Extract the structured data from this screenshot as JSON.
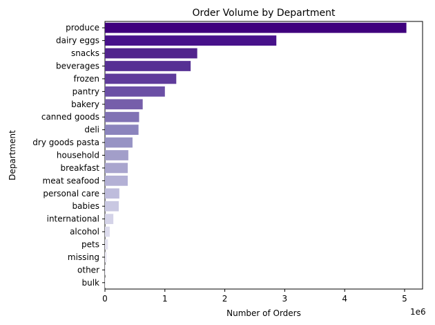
{
  "chart_data": {
    "type": "bar",
    "orientation": "horizontal",
    "title": "Order Volume by Department",
    "xlabel": "Number of Orders",
    "ylabel": "Department",
    "x_scale_label": "1e6",
    "xlim": [
      0,
      5300000
    ],
    "x_ticks": [
      0,
      1000000,
      2000000,
      3000000,
      4000000,
      5000000
    ],
    "x_tick_labels": [
      "0",
      "1",
      "2",
      "3",
      "4",
      "5"
    ],
    "grid": false,
    "legend": "none",
    "categories": [
      "produce",
      "dairy eggs",
      "snacks",
      "beverages",
      "frozen",
      "pantry",
      "bakery",
      "canned goods",
      "deli",
      "dry goods pasta",
      "household",
      "breakfast",
      "meat seafood",
      "personal care",
      "babies",
      "international",
      "alcohol",
      "pets",
      "missing",
      "other",
      "bulk"
    ],
    "values": [
      5030000,
      2860000,
      1540000,
      1430000,
      1190000,
      1000000,
      630000,
      570000,
      560000,
      460000,
      390000,
      380000,
      380000,
      240000,
      230000,
      140000,
      80000,
      50000,
      30000,
      10000,
      10000
    ],
    "colors": [
      "#3f007d",
      "#47118a",
      "#51238d",
      "#563094",
      "#5f3b9b",
      "#6b4fa5",
      "#765eaa",
      "#8072b4",
      "#8b84bd",
      "#9793c4",
      "#a29ec9",
      "#a9a5ce",
      "#b3b0d5",
      "#bebcdc",
      "#c9c8e2",
      "#d4d3e8",
      "#dcdbed",
      "#e3e2f0",
      "#ebeaf4",
      "#f0eff7",
      "#f6f5fb"
    ]
  }
}
